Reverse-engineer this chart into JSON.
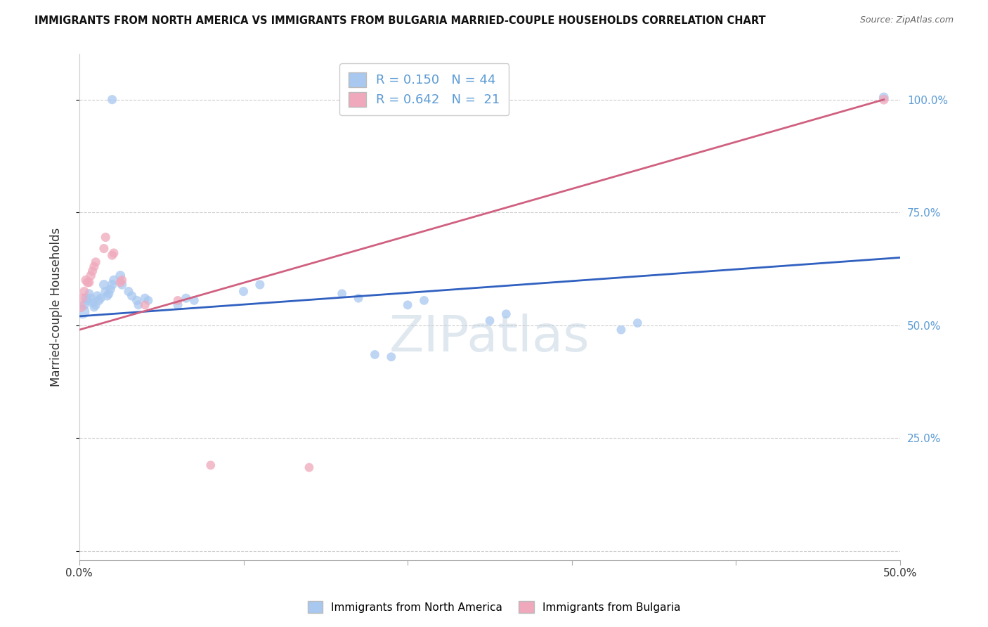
{
  "title": "IMMIGRANTS FROM NORTH AMERICA VS IMMIGRANTS FROM BULGARIA MARRIED-COUPLE HOUSEHOLDS CORRELATION CHART",
  "source": "Source: ZipAtlas.com",
  "ylabel": "Married-couple Households",
  "legend_label1": "Immigrants from North America",
  "legend_label2": "Immigrants from Bulgaria",
  "R1": 0.15,
  "N1": 44,
  "R2": 0.642,
  "N2": 21,
  "xlim": [
    0.0,
    0.5
  ],
  "ylim": [
    -0.02,
    1.1
  ],
  "color_blue": "#A8C8F0",
  "color_pink": "#F0A8BC",
  "color_blue_line": "#3060C0",
  "color_pink_line": "#D06080",
  "color_right_ytick": "#5B9BD5",
  "watermark": "ZIPatlas",
  "blue_dots": [
    [
      0.002,
      0.53
    ],
    [
      0.003,
      0.545
    ],
    [
      0.004,
      0.56
    ],
    [
      0.005,
      0.555
    ],
    [
      0.006,
      0.57
    ],
    [
      0.007,
      0.56
    ],
    [
      0.008,
      0.55
    ],
    [
      0.009,
      0.54
    ],
    [
      0.01,
      0.545
    ],
    [
      0.011,
      0.565
    ],
    [
      0.012,
      0.555
    ],
    [
      0.013,
      0.56
    ],
    [
      0.015,
      0.59
    ],
    [
      0.016,
      0.575
    ],
    [
      0.017,
      0.565
    ],
    [
      0.018,
      0.57
    ],
    [
      0.019,
      0.58
    ],
    [
      0.02,
      0.59
    ],
    [
      0.021,
      0.6
    ],
    [
      0.025,
      0.61
    ],
    [
      0.026,
      0.59
    ],
    [
      0.03,
      0.575
    ],
    [
      0.032,
      0.565
    ],
    [
      0.035,
      0.555
    ],
    [
      0.036,
      0.545
    ],
    [
      0.04,
      0.56
    ],
    [
      0.042,
      0.555
    ],
    [
      0.06,
      0.545
    ],
    [
      0.065,
      0.56
    ],
    [
      0.07,
      0.555
    ],
    [
      0.1,
      0.575
    ],
    [
      0.11,
      0.59
    ],
    [
      0.16,
      0.57
    ],
    [
      0.17,
      0.56
    ],
    [
      0.2,
      0.545
    ],
    [
      0.21,
      0.555
    ],
    [
      0.25,
      0.51
    ],
    [
      0.26,
      0.525
    ],
    [
      0.33,
      0.49
    ],
    [
      0.34,
      0.505
    ],
    [
      0.02,
      1.0
    ],
    [
      0.18,
      0.435
    ],
    [
      0.19,
      0.43
    ],
    [
      0.49,
      1.005
    ]
  ],
  "blue_dot_sizes": [
    200,
    100,
    90,
    100,
    90,
    95,
    90,
    85,
    90,
    95,
    90,
    90,
    100,
    95,
    90,
    90,
    90,
    100,
    95,
    100,
    95,
    90,
    90,
    90,
    85,
    90,
    85,
    90,
    90,
    85,
    90,
    90,
    85,
    85,
    85,
    85,
    85,
    85,
    85,
    85,
    90,
    85,
    85,
    100
  ],
  "pink_dots": [
    [
      0.001,
      0.54
    ],
    [
      0.002,
      0.56
    ],
    [
      0.003,
      0.575
    ],
    [
      0.004,
      0.6
    ],
    [
      0.005,
      0.595
    ],
    [
      0.006,
      0.595
    ],
    [
      0.007,
      0.61
    ],
    [
      0.008,
      0.62
    ],
    [
      0.009,
      0.63
    ],
    [
      0.01,
      0.64
    ],
    [
      0.015,
      0.67
    ],
    [
      0.016,
      0.695
    ],
    [
      0.02,
      0.655
    ],
    [
      0.021,
      0.66
    ],
    [
      0.025,
      0.595
    ],
    [
      0.026,
      0.6
    ],
    [
      0.04,
      0.545
    ],
    [
      0.06,
      0.555
    ],
    [
      0.08,
      0.19
    ],
    [
      0.14,
      0.185
    ],
    [
      0.49,
      1.0
    ]
  ],
  "pink_dot_sizes": [
    100,
    95,
    90,
    95,
    95,
    90,
    95,
    90,
    90,
    90,
    90,
    90,
    90,
    90,
    90,
    90,
    85,
    85,
    85,
    85,
    100
  ],
  "grid_color": "#CCCCCC",
  "background_color": "#FFFFFF"
}
